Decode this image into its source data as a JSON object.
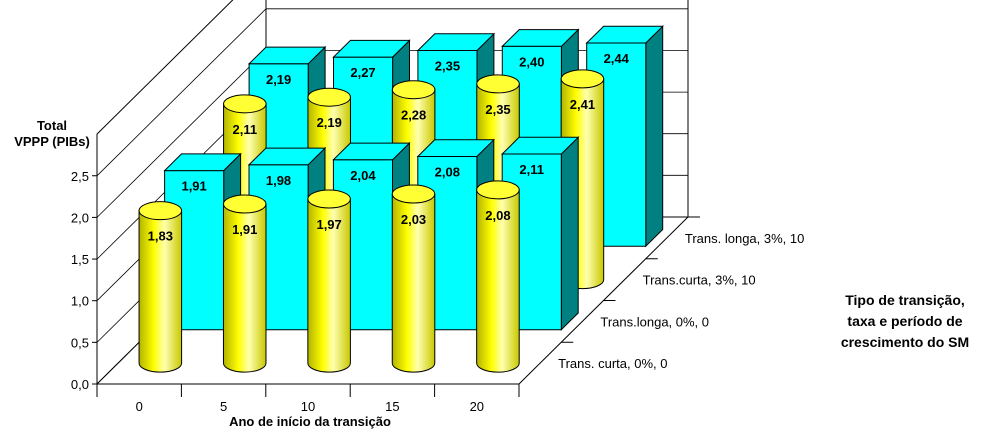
{
  "chart_data": {
    "type": "bar",
    "style": "3d-perspective",
    "ylabel_line1": "Total",
    "ylabel_line2": "VPPP (PIBs)",
    "xlabel": "Ano de início da transição",
    "zlabel_line1": "Tipo de transição,",
    "zlabel_line2": "taxa e período de",
    "zlabel_line3": "crescimento do SM",
    "categories": [
      "0",
      "5",
      "10",
      "15",
      "20"
    ],
    "y_ticks": [
      "0,0",
      "0,5",
      "1,0",
      "1,5",
      "2,0",
      "2,5"
    ],
    "ylim": [
      0,
      3.0
    ],
    "series": [
      {
        "name": "Trans. curta, 0%, 0",
        "shape": "cylinder",
        "color": "#ffff00",
        "values": [
          1.83,
          1.91,
          1.97,
          2.03,
          2.08
        ],
        "labels": [
          "1,83",
          "1,91",
          "1,97",
          "2,03",
          "2,08"
        ]
      },
      {
        "name": "Trans.longa, 0%, 0",
        "shape": "box",
        "color": "#00ffff",
        "values": [
          1.91,
          1.98,
          2.04,
          2.08,
          2.11
        ],
        "labels": [
          "1,91",
          "1,98",
          "2,04",
          "2,08",
          "2,11"
        ]
      },
      {
        "name": "Trans.curta, 3%, 10",
        "shape": "cylinder",
        "color": "#ffff00",
        "values": [
          2.11,
          2.19,
          2.28,
          2.35,
          2.41
        ],
        "labels": [
          "2,11",
          "2,19",
          "2,28",
          "2,35",
          "2,41"
        ]
      },
      {
        "name": "Trans. longa, 3%, 10",
        "shape": "box",
        "color": "#00ffff",
        "values": [
          2.19,
          2.27,
          2.35,
          2.4,
          2.44
        ],
        "labels": [
          "2,19",
          "2,27",
          "2,35",
          "2,40",
          "2,44"
        ]
      }
    ],
    "grid": true
  }
}
